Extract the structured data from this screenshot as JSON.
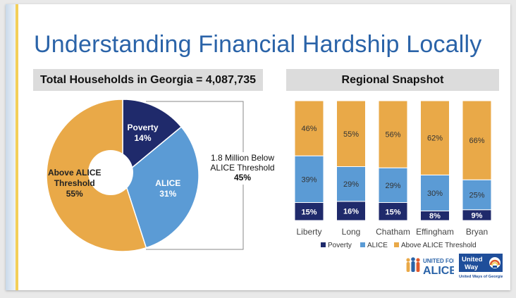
{
  "title": "Understanding Financial Hardship Locally",
  "left_header": "Total Households in Georgia = 4,087,735",
  "right_header": "Regional Snapshot",
  "annotation": {
    "lines": [
      "1.8 Million Below",
      "ALICE Threshold",
      "45%"
    ]
  },
  "colors": {
    "poverty": "#1f2a6b",
    "alice": "#5b9bd5",
    "above": "#e9a948",
    "title": "#2a63a8"
  },
  "chart_data": [
    {
      "type": "pie",
      "slices": [
        {
          "label": "Poverty",
          "value": 14,
          "text": "14%"
        },
        {
          "label": "ALICE",
          "value": 31,
          "text": "31%"
        },
        {
          "label": "Above ALICE Threshold",
          "label_lines": [
            "Above ALICE",
            "Threshold"
          ],
          "value": 55,
          "text": "55%"
        }
      ],
      "donut_hole": true
    },
    {
      "type": "bar",
      "stacked": true,
      "categories": [
        "Liberty",
        "Long",
        "Chatham",
        "Effingham",
        "Bryan"
      ],
      "series": [
        {
          "name": "Poverty",
          "values": [
            15,
            16,
            15,
            8,
            9
          ]
        },
        {
          "name": "ALICE",
          "values": [
            39,
            29,
            29,
            30,
            25
          ]
        },
        {
          "name": "Above ALICE Threshold",
          "values": [
            46,
            55,
            56,
            62,
            66
          ]
        }
      ],
      "ylim": [
        0,
        100
      ],
      "legend": "bottom"
    }
  ],
  "logos": {
    "alice": {
      "line1": "UNITED FOR",
      "line2": "ALICE"
    },
    "united_way": {
      "line1": "United",
      "line2": "Way",
      "caption": "United Ways of Georgia"
    }
  }
}
